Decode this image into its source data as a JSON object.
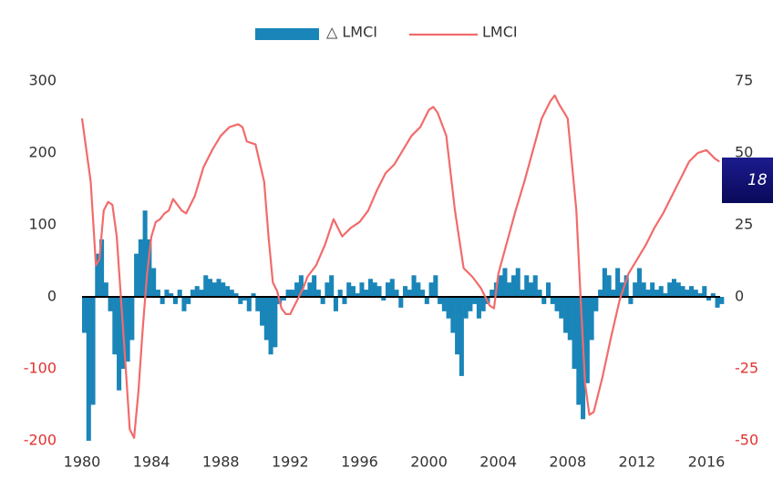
{
  "chart_data": {
    "type": "combo",
    "annotation": "18",
    "xlim": [
      1980,
      2016
    ],
    "xticks": [
      1980,
      1984,
      1988,
      1992,
      1996,
      2000,
      2004,
      2008,
      2012,
      2016
    ],
    "ylim": [
      -200,
      300
    ],
    "yticks": [
      -200,
      -100,
      0,
      100,
      200,
      300
    ],
    "y2lim": [
      -50,
      75
    ],
    "y2ticks": [
      -50,
      -25,
      0,
      25,
      50,
      75
    ],
    "negative_tick_color": "#e0332f",
    "series": [
      {
        "name": "△ LMCI",
        "type": "bar",
        "color": "#1a85b8",
        "x": [
          1980,
          1980.25,
          1980.5,
          1980.75,
          1981,
          1981.25,
          1981.5,
          1981.75,
          1982,
          1982.25,
          1982.5,
          1982.75,
          1983,
          1983.25,
          1983.5,
          1983.75,
          1984,
          1984.25,
          1984.5,
          1984.75,
          1985,
          1985.25,
          1985.5,
          1985.75,
          1986,
          1986.25,
          1986.5,
          1986.75,
          1987,
          1987.25,
          1987.5,
          1987.75,
          1988,
          1988.25,
          1988.5,
          1988.75,
          1989,
          1989.25,
          1989.5,
          1989.75,
          1990,
          1990.25,
          1990.5,
          1990.75,
          1991,
          1991.25,
          1991.5,
          1991.75,
          1992,
          1992.25,
          1992.5,
          1992.75,
          1993,
          1993.25,
          1993.5,
          1993.75,
          1994,
          1994.25,
          1994.5,
          1994.75,
          1995,
          1995.25,
          1995.5,
          1995.75,
          1996,
          1996.25,
          1996.5,
          1996.75,
          1997,
          1997.25,
          1997.5,
          1997.75,
          1998,
          1998.25,
          1998.5,
          1998.75,
          1999,
          1999.25,
          1999.5,
          1999.75,
          2000,
          2000.25,
          2000.5,
          2000.75,
          2001,
          2001.25,
          2001.5,
          2001.75,
          2002,
          2002.25,
          2002.5,
          2002.75,
          2003,
          2003.25,
          2003.5,
          2003.75,
          2004,
          2004.25,
          2004.5,
          2004.75,
          2005,
          2005.25,
          2005.5,
          2005.75,
          2006,
          2006.25,
          2006.5,
          2006.75,
          2007,
          2007.25,
          2007.5,
          2007.75,
          2008,
          2008.25,
          2008.5,
          2008.75,
          2009,
          2009.25,
          2009.5,
          2009.75,
          2010,
          2010.25,
          2010.5,
          2010.75,
          2011,
          2011.25,
          2011.5,
          2011.75,
          2012,
          2012.25,
          2012.5,
          2012.75,
          2013,
          2013.25,
          2013.5,
          2013.75,
          2014,
          2014.25,
          2014.5,
          2014.75,
          2015,
          2015.25,
          2015.5,
          2015.75,
          2016,
          2016.25,
          2016.5,
          2016.75
        ],
        "values": [
          -50,
          -200,
          -150,
          60,
          80,
          20,
          -20,
          -80,
          -130,
          -100,
          -90,
          -60,
          60,
          80,
          120,
          80,
          40,
          10,
          -10,
          10,
          5,
          -10,
          10,
          -20,
          -10,
          10,
          15,
          10,
          30,
          25,
          20,
          25,
          20,
          15,
          10,
          5,
          -10,
          -5,
          -20,
          5,
          -20,
          -40,
          -60,
          -80,
          -70,
          -10,
          -5,
          10,
          10,
          20,
          30,
          10,
          20,
          30,
          10,
          -10,
          20,
          30,
          -20,
          10,
          -10,
          20,
          15,
          5,
          20,
          10,
          25,
          20,
          15,
          -5,
          20,
          25,
          10,
          -15,
          15,
          10,
          30,
          20,
          10,
          -10,
          20,
          30,
          -10,
          -20,
          -30,
          -50,
          -80,
          -110,
          -30,
          -20,
          -10,
          -30,
          -20,
          -10,
          10,
          20,
          30,
          40,
          20,
          30,
          40,
          10,
          30,
          20,
          30,
          10,
          -10,
          20,
          -10,
          -20,
          -30,
          -50,
          -60,
          -100,
          -150,
          -170,
          -120,
          -60,
          -20,
          10,
          40,
          30,
          10,
          40,
          20,
          30,
          -10,
          20,
          40,
          20,
          10,
          20,
          10,
          15,
          5,
          20,
          25,
          20,
          15,
          10,
          15,
          10,
          5,
          15,
          -5,
          5,
          -15,
          -10
        ]
      },
      {
        "name": "LMCI",
        "type": "line",
        "axis": "y2",
        "color": "#f26b6b",
        "x": [
          1980,
          1980.5,
          1980.8,
          1981,
          1981.25,
          1981.5,
          1981.75,
          1982,
          1982.25,
          1982.5,
          1982.75,
          1983,
          1983.25,
          1983.5,
          1983.75,
          1984,
          1984.25,
          1984.5,
          1984.75,
          1985,
          1985.25,
          1985.5,
          1985.75,
          1986,
          1986.25,
          1986.5,
          1986.75,
          1987,
          1987.5,
          1988,
          1988.5,
          1989,
          1989.25,
          1989.5,
          1990,
          1990.5,
          1990.75,
          1991,
          1991.25,
          1991.5,
          1991.75,
          1992,
          1992.25,
          1992.5,
          1992.75,
          1993,
          1993.5,
          1994,
          1994.5,
          1995,
          1995.5,
          1996,
          1996.5,
          1997,
          1997.5,
          1998,
          1998.5,
          1999,
          1999.5,
          2000,
          2000.25,
          2000.5,
          2001,
          2001.5,
          2002,
          2002.5,
          2003,
          2003.5,
          2003.75,
          2004,
          2004.5,
          2005,
          2005.5,
          2006,
          2006.5,
          2007,
          2007.25,
          2007.5,
          2008,
          2008.5,
          2008.75,
          2009,
          2009.25,
          2009.5,
          2010,
          2010.5,
          2011,
          2011.5,
          2012,
          2012.5,
          2013,
          2013.5,
          2014,
          2014.5,
          2015,
          2015.5,
          2016,
          2016.5,
          2016.75
        ],
        "values": [
          62,
          40,
          11,
          13,
          30,
          33,
          32,
          21,
          -1,
          -23,
          -46,
          -49,
          -33,
          -11,
          8,
          21,
          26,
          27,
          29,
          30,
          34,
          32,
          30,
          29,
          32,
          35,
          40,
          45,
          51,
          56,
          59,
          60,
          59,
          54,
          53,
          40,
          21,
          5,
          2,
          -4,
          -6,
          -6,
          -3,
          0,
          3,
          7,
          11,
          18,
          27,
          21,
          24,
          26,
          30,
          37,
          43,
          46,
          51,
          56,
          59,
          65,
          66,
          64,
          56,
          30,
          10,
          7,
          3,
          -3,
          -4,
          8,
          19,
          30,
          40,
          51,
          62,
          68,
          70,
          67,
          62,
          30,
          -1,
          -30,
          -41,
          -40,
          -28,
          -14,
          -1,
          8,
          13,
          18,
          24,
          29,
          35,
          41,
          47,
          50,
          51,
          48,
          47
        ]
      }
    ]
  }
}
